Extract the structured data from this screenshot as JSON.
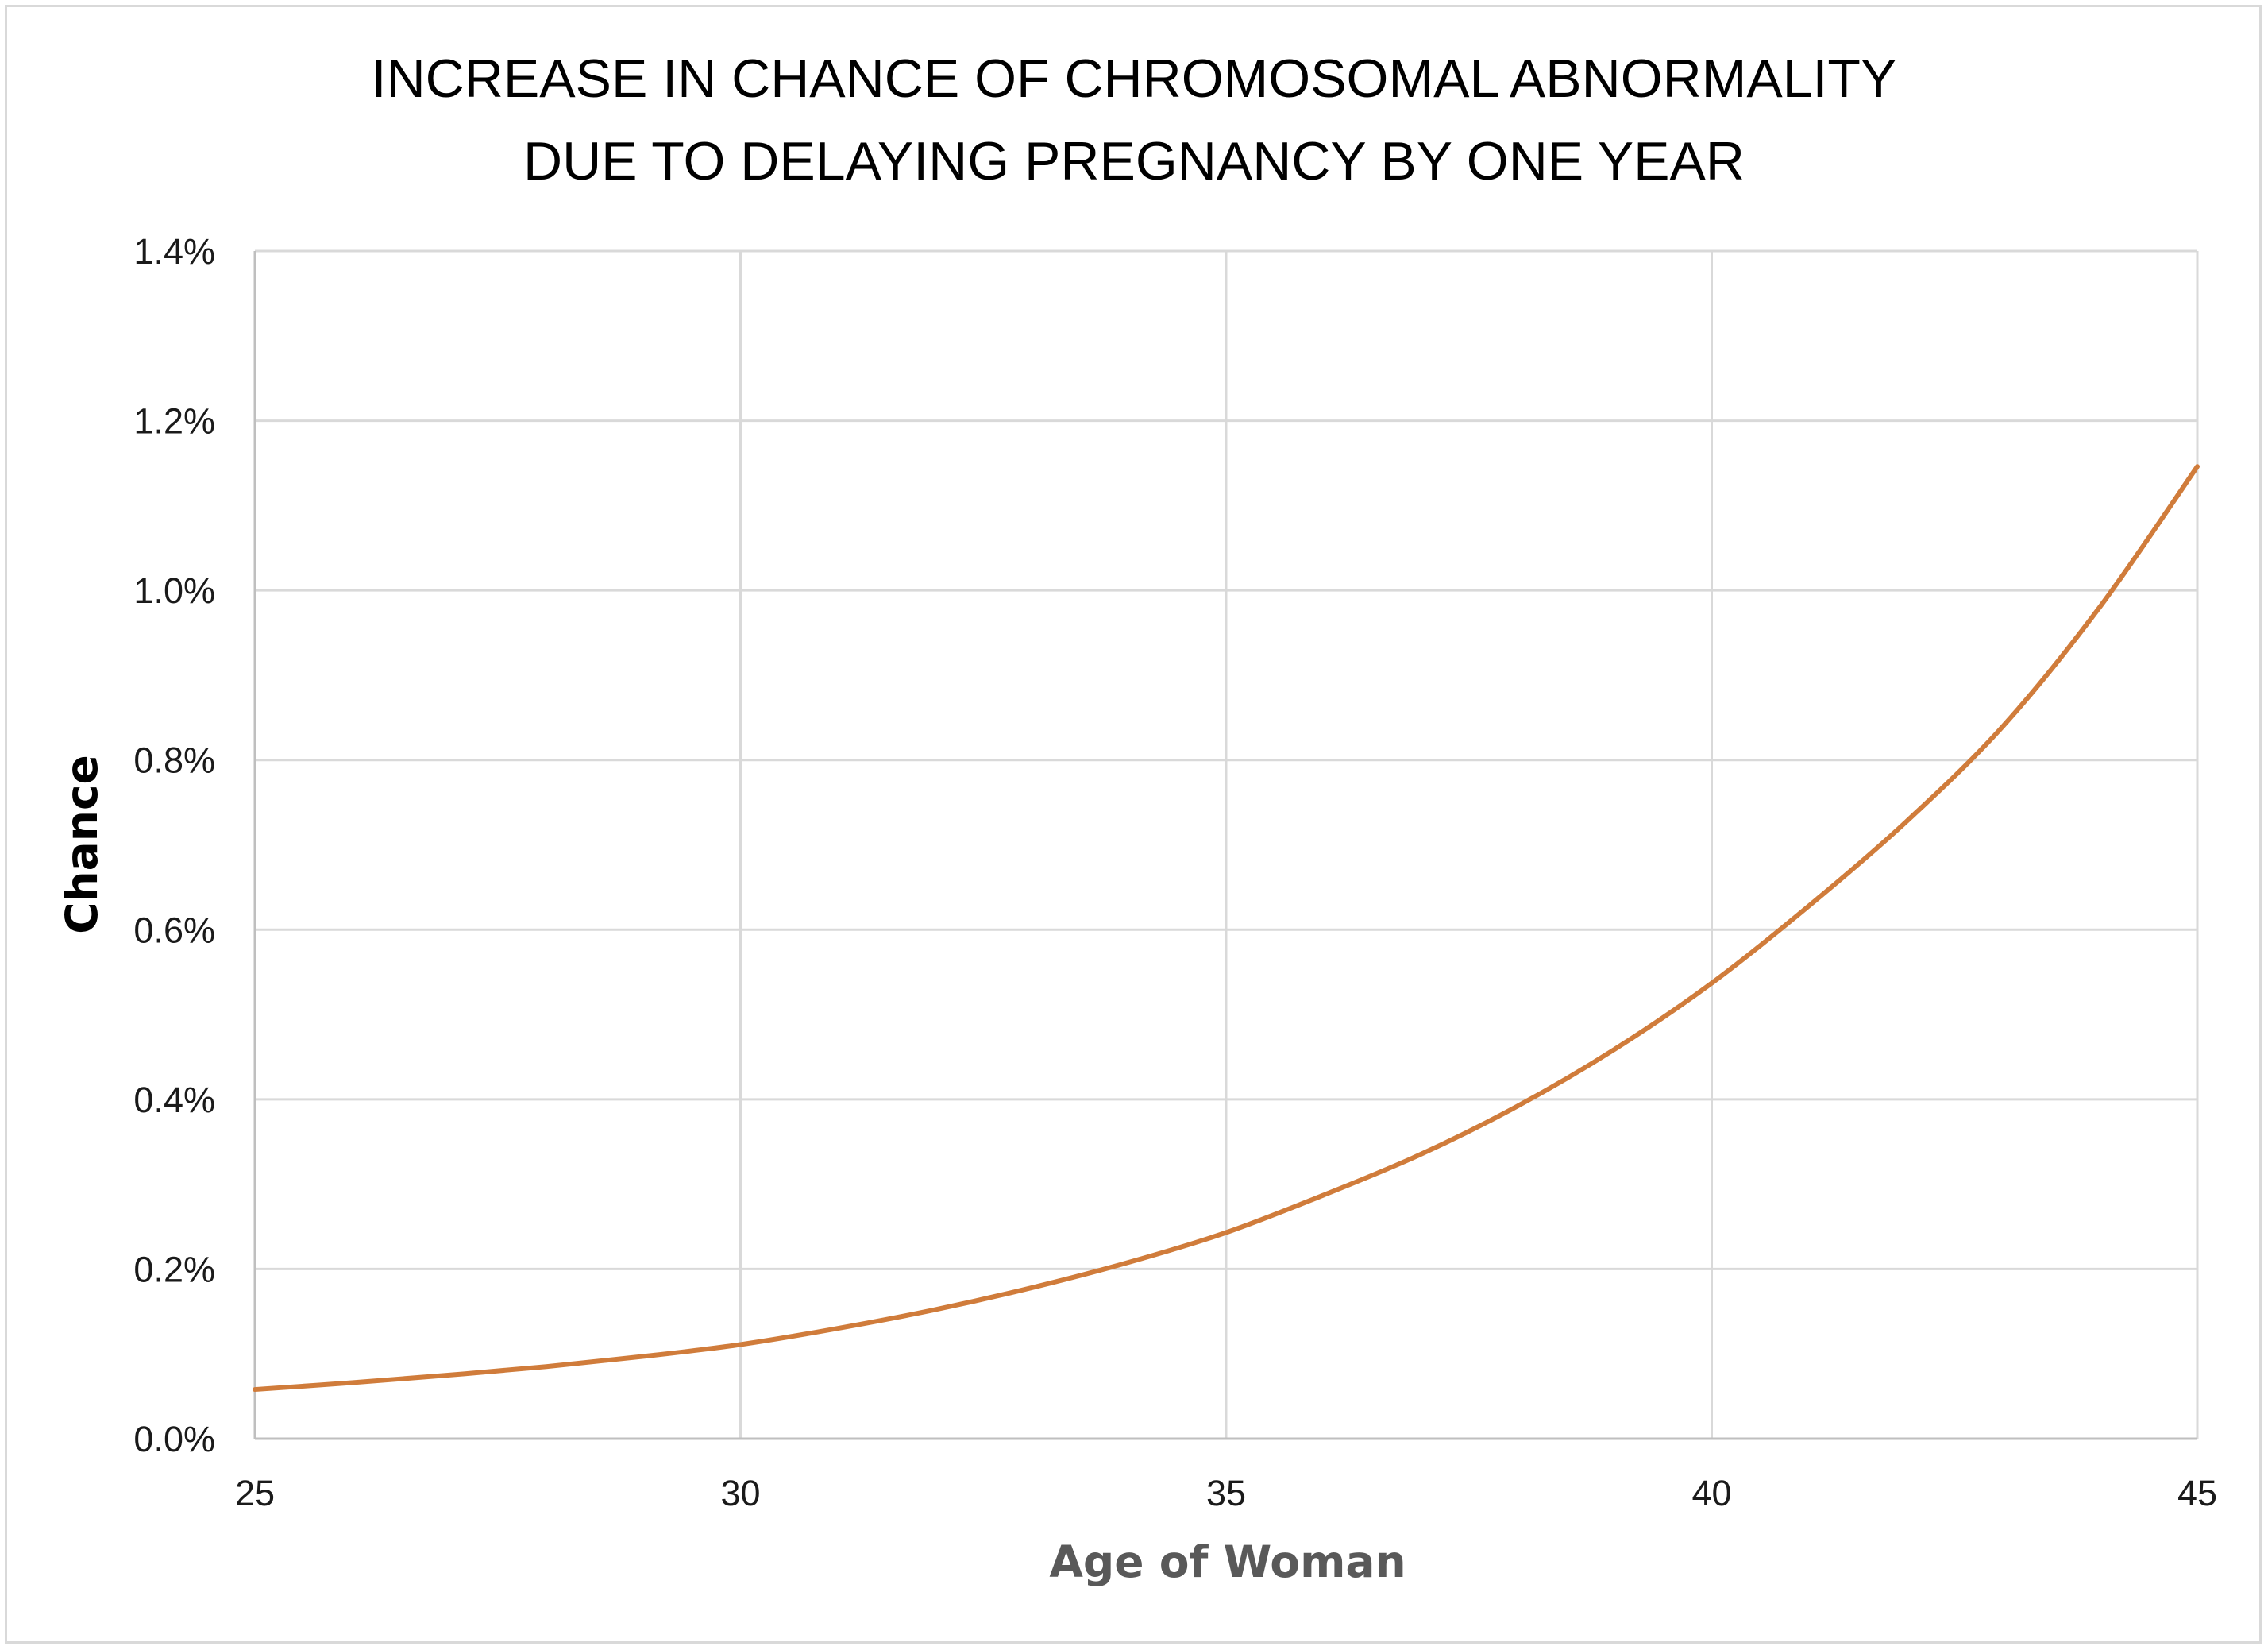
{
  "chart_data": {
    "type": "line",
    "title": [
      "INCREASE IN CHANCE OF CHROMOSOMAL ABNORMALITY",
      "DUE TO DELAYING PREGNANCY BY ONE YEAR"
    ],
    "xlabel": "Age of Woman",
    "ylabel": "Chance",
    "xlim": [
      25,
      45
    ],
    "ylim": [
      0,
      0.014
    ],
    "x_ticks": [
      25,
      30,
      35,
      40,
      45
    ],
    "x_tick_labels": [
      "25",
      "30",
      "35",
      "40",
      "45"
    ],
    "y_ticks": [
      0,
      0.002,
      0.004,
      0.006,
      0.008,
      0.01,
      0.012,
      0.014
    ],
    "y_tick_labels": [
      "0.0%",
      "0.2%",
      "0.4%",
      "0.6%",
      "0.8%",
      "1.0%",
      "1.2%",
      "1.4%"
    ],
    "grid": true,
    "legend": "none",
    "line_color": "#d07c3b",
    "grid_color": "#d9d9d9",
    "series": [
      {
        "x": [
          25,
          26,
          27,
          28,
          29,
          30,
          31,
          32,
          33,
          34,
          35,
          36,
          37,
          38,
          39,
          40,
          41,
          42,
          43,
          44,
          45
        ],
        "values": [
          0.00058,
          0.00066,
          0.00075,
          0.00085,
          0.00097,
          0.00111,
          0.0013,
          0.00152,
          0.00178,
          0.00208,
          0.00243,
          0.00287,
          0.00335,
          0.00392,
          0.00459,
          0.00537,
          0.00628,
          0.00727,
          0.0084,
          0.00981,
          0.01146
        ]
      }
    ]
  }
}
